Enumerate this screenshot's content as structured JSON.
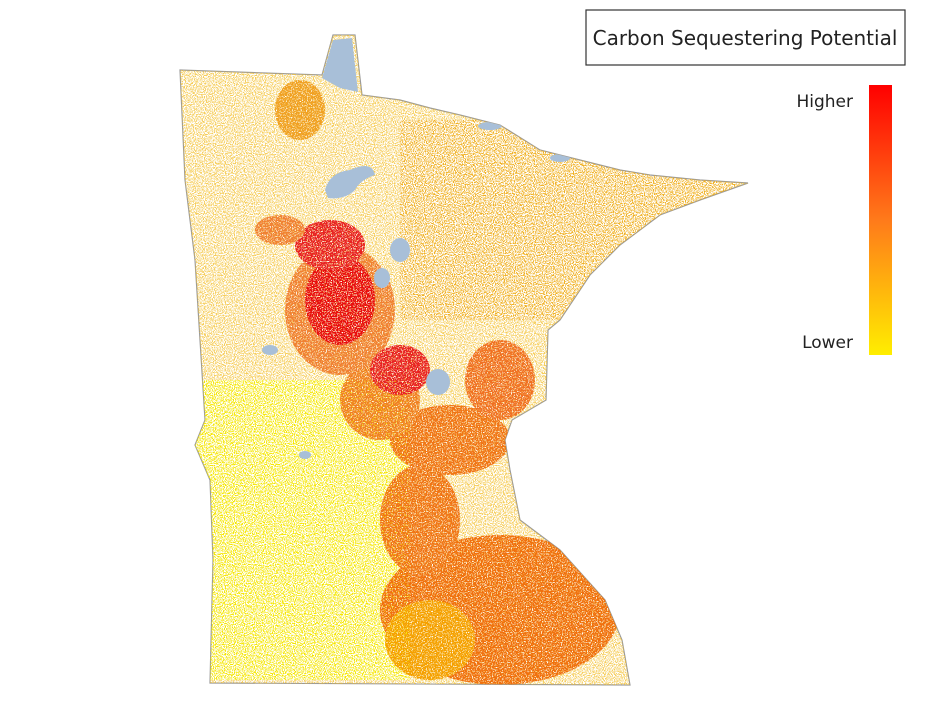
{
  "title": "Carbon Sequestering Potential",
  "legend": {
    "high_label": "Higher",
    "low_label": "Lower"
  }
}
